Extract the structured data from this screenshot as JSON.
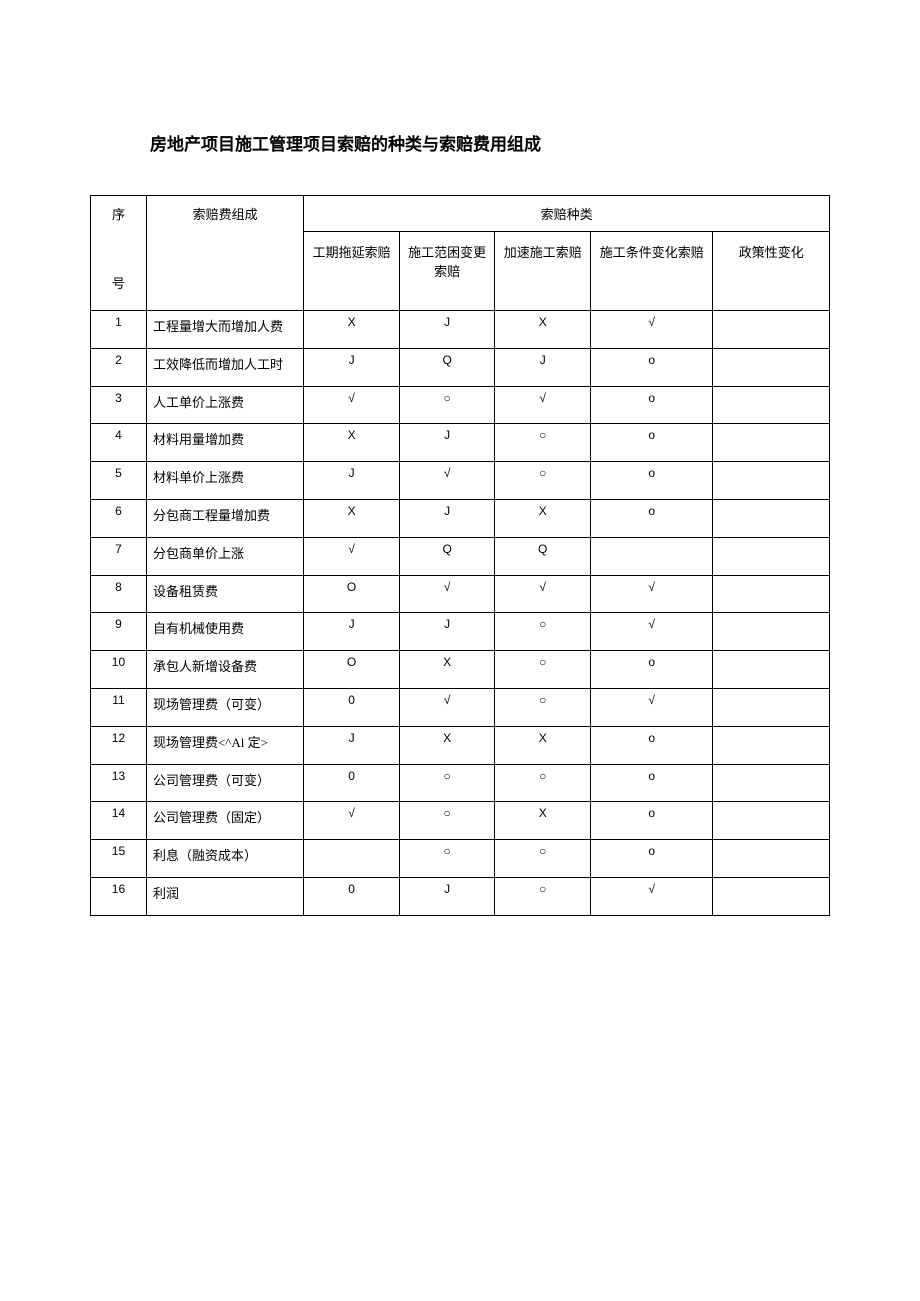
{
  "title": "房地产项目施工管理项目索赔的种类与索赔费用组成",
  "headers": {
    "seq": "序",
    "seq2": "号",
    "item": "索赔费组成",
    "claim_types": "索赔种类",
    "c1": "工期拖延索赔",
    "c2": "施工范困变更索赔",
    "c3": "加速施工索赔",
    "c4": "施工条件变化索赔",
    "c5": "政策性变化"
  },
  "rows": [
    {
      "seq": "1",
      "item": "工程量增大而增加人费",
      "c1": "X",
      "c2": "J",
      "c3": "X",
      "c4": "√",
      "c5": ""
    },
    {
      "seq": "2",
      "item": "工效降低而增加人工时",
      "c1": "J",
      "c2": "Q",
      "c3": "J",
      "c4": "o",
      "c5": ""
    },
    {
      "seq": "3",
      "item": "人工单价上涨费",
      "c1": "√",
      "c2": "○",
      "c3": "√",
      "c4": "o",
      "c5": ""
    },
    {
      "seq": "4",
      "item": "材料用量增加费",
      "c1": "X",
      "c2": "J",
      "c3": "○",
      "c4": "o",
      "c5": ""
    },
    {
      "seq": "5",
      "item": "材料单价上涨费",
      "c1": "J",
      "c2": "√",
      "c3": "○",
      "c4": "o",
      "c5": ""
    },
    {
      "seq": "6",
      "item": "分包商工程量增加费",
      "c1": "X",
      "c2": "J",
      "c3": "X",
      "c4": "o",
      "c5": ""
    },
    {
      "seq": "7",
      "item": "分包商单价上涨",
      "c1": "√",
      "c2": "Q",
      "c3": "Q",
      "c4": "",
      "c5": ""
    },
    {
      "seq": "8",
      "item": "设备租赁费",
      "c1": "O",
      "c2": "√",
      "c3": "√",
      "c4": "√",
      "c5": ""
    },
    {
      "seq": "9",
      "item": "自有机械使用费",
      "c1": "J",
      "c2": "J",
      "c3": "○",
      "c4": "√",
      "c5": ""
    },
    {
      "seq": "10",
      "item": "承包人新增设备费",
      "c1": "O",
      "c2": "X",
      "c3": "○",
      "c4": "o",
      "c5": ""
    },
    {
      "seq": "11",
      "item": "现场管理费（可变）",
      "c1": "0",
      "c2": "√",
      "c3": "○",
      "c4": "√",
      "c5": ""
    },
    {
      "seq": "12",
      "item": "现场管理费<^Al 定>",
      "c1": "J",
      "c2": "X",
      "c3": "X",
      "c4": "o",
      "c5": ""
    },
    {
      "seq": "13",
      "item": "公司管理费（可变）",
      "c1": "0",
      "c2": "○",
      "c3": "○",
      "c4": "o",
      "c5": ""
    },
    {
      "seq": "14",
      "item": "公司管理费（固定）",
      "c1": "√",
      "c2": "○",
      "c3": "X",
      "c4": "o",
      "c5": ""
    },
    {
      "seq": "15",
      "item": "利息（融资成本）",
      "c1": "",
      "c2": "○",
      "c3": "○",
      "c4": "o",
      "c5": ""
    },
    {
      "seq": "16",
      "item": "利润",
      "c1": "0",
      "c2": "J",
      "c3": "○",
      "c4": "√",
      "c5": ""
    }
  ]
}
